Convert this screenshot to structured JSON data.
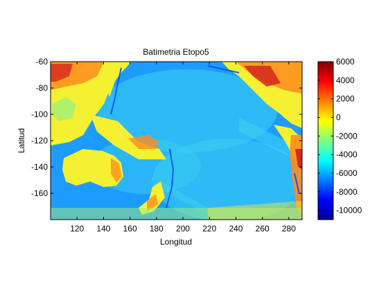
{
  "chart_data": {
    "type": "heatmap",
    "title": "Batimetria Etopo5",
    "xlabel": "Longitud",
    "ylabel": "Latitud",
    "xlim": [
      100,
      290
    ],
    "ylim": [
      -60,
      -180
    ],
    "x_ticks": [
      "120",
      "140",
      "160",
      "180",
      "200",
      "220",
      "240",
      "260",
      "280"
    ],
    "x_tick_values": [
      120,
      140,
      160,
      180,
      200,
      220,
      240,
      260,
      280
    ],
    "y_ticks": [
      "-60",
      "-80",
      "-100",
      "-120",
      "-140",
      "-160"
    ],
    "y_tick_values": [
      -60,
      -80,
      -100,
      -120,
      -140,
      -160
    ],
    "colorbar": {
      "range": [
        -11000,
        6000
      ],
      "ticks": [
        "6000",
        "4000",
        "2000",
        "0",
        "-2000",
        "-4000",
        "-6000",
        "-8000",
        "-10000"
      ],
      "tick_values": [
        6000,
        4000,
        2000,
        0,
        -2000,
        -4000,
        -6000,
        -8000,
        -10000
      ],
      "colormap": "jet"
    },
    "colors": {
      "deep_ocean": "#1e9bff",
      "ocean": "#3cd2f0",
      "shelf": "#a0f078",
      "lowland": "#f5f032",
      "highland": "#ff8c1e",
      "mountain": "#d21e1e"
    }
  }
}
